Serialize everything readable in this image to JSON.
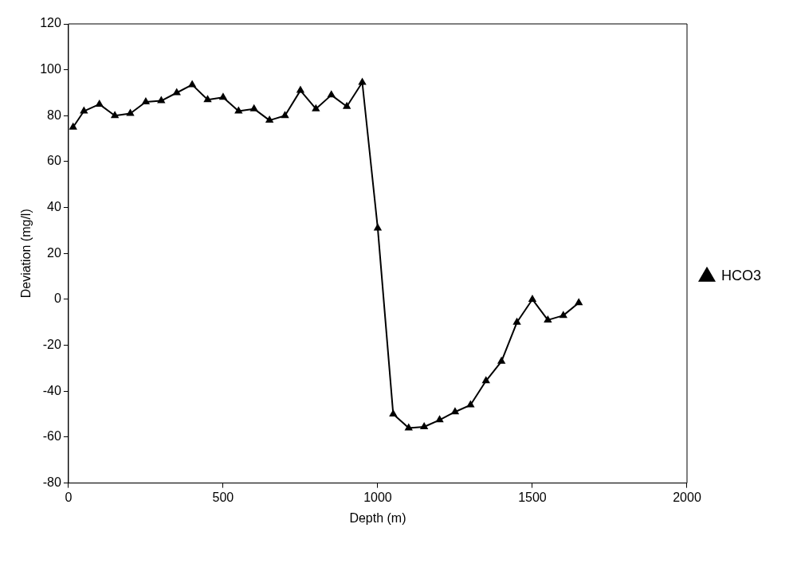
{
  "chart_data": {
    "type": "line",
    "xlabel": "Depth (m)",
    "ylabel": "Deviation (mg/l)",
    "x": [
      15,
      50,
      100,
      150,
      200,
      250,
      300,
      350,
      400,
      450,
      500,
      550,
      600,
      650,
      700,
      750,
      800,
      850,
      900,
      950,
      1000,
      1050,
      1100,
      1150,
      1200,
      1250,
      1300,
      1350,
      1400,
      1450,
      1500,
      1550,
      1600,
      1650
    ],
    "series": [
      {
        "name": "HCO3",
        "color": "#000000",
        "values": [
          75,
          82,
          85,
          80,
          81,
          86,
          86.5,
          90,
          93.5,
          87,
          88,
          82,
          83,
          78,
          80,
          91,
          83,
          89,
          84,
          94.5,
          31,
          -50,
          -56,
          -55.5,
          -52.5,
          -49,
          -46,
          -35.5,
          -27,
          -10,
          0,
          -9,
          -7,
          -1.5
        ]
      }
    ],
    "xlim": [
      0,
      2000
    ],
    "xticks": [
      0,
      500,
      1000,
      1500,
      2000
    ],
    "ylim": [
      -80,
      120
    ],
    "yticks": [
      -80,
      -60,
      -40,
      -20,
      0,
      20,
      40,
      60,
      80,
      100,
      120
    ],
    "grid": false,
    "legend": "right",
    "marker": "triangle",
    "line_style": "solid"
  }
}
